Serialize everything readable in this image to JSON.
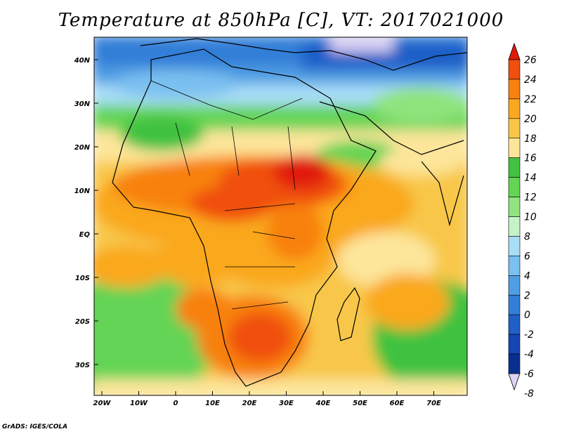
{
  "title": "Temperature at 850hPa [C], VT: 2017021000",
  "credit": "GrADS: IGES/COLA",
  "map": {
    "lat_labels": [
      "40N",
      "30N",
      "20N",
      "10N",
      "EQ",
      "10S",
      "20S",
      "30S"
    ],
    "lon_labels": [
      "20W",
      "10W",
      "0",
      "10E",
      "20E",
      "30E",
      "40E",
      "50E",
      "60E",
      "70E"
    ]
  },
  "colorbar": {
    "levels": [
      "26",
      "24",
      "22",
      "20",
      "18",
      "16",
      "14",
      "12",
      "10",
      "8",
      "6",
      "4",
      "2",
      "0",
      "-2",
      "-4",
      "-6",
      "-8"
    ],
    "colors": [
      "#e11a09",
      "#f04f0e",
      "#f8810f",
      "#faa81f",
      "#f8c749",
      "#fde59a",
      "#41c240",
      "#63d454",
      "#8fe47d",
      "#c5f3c7",
      "#a8ddf7",
      "#7ac0f0",
      "#4f9ee3",
      "#337ed8",
      "#1f5fc8",
      "#1447b5",
      "#082f90",
      "#dcd3f5"
    ]
  }
}
